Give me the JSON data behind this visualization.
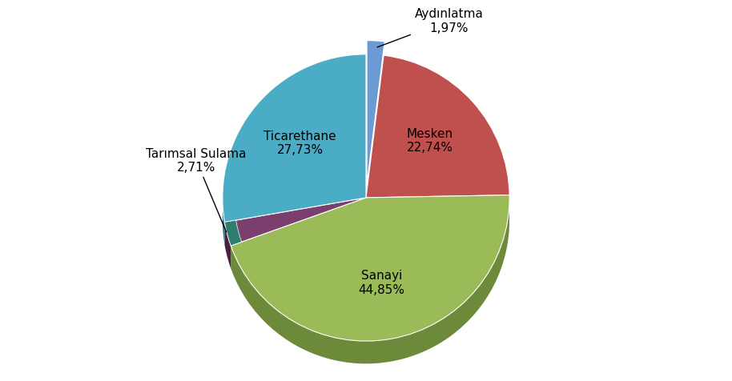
{
  "labels": [
    "Aydınlatma",
    "Mesken",
    "Sanayi",
    "Tarımsal Sulama",
    "Ticarethane"
  ],
  "values": [
    1.97,
    22.74,
    44.85,
    2.71,
    27.73
  ],
  "colors": [
    "#6b9bd2",
    "#c0504d",
    "#9bbb59",
    "#7b3f6e",
    "#4bacc6"
  ],
  "shadow_colors": [
    "#4a6f9a",
    "#8b3330",
    "#6d8a3a",
    "#4a2040",
    "#2a7a96"
  ],
  "teal_color": "#2e7d6e",
  "explode_index": 0,
  "explode_amount": 0.08,
  "background_color": "#ffffff",
  "startangle": 90,
  "fontsize": 11,
  "depth": 0.06,
  "label_data": [
    {
      "text": "Aydınlatma\n1,97%",
      "outside": true,
      "arrow": true
    },
    {
      "text": "Mesken\n22,74%",
      "outside": false,
      "arrow": false
    },
    {
      "text": "Sanayi\n44,85%",
      "outside": false,
      "arrow": false
    },
    {
      "text": "Tarımsal Sulama\n2,71%",
      "outside": true,
      "arrow": true
    },
    {
      "text": "Ticarethane\n27,73%",
      "outside": false,
      "arrow": false
    }
  ]
}
